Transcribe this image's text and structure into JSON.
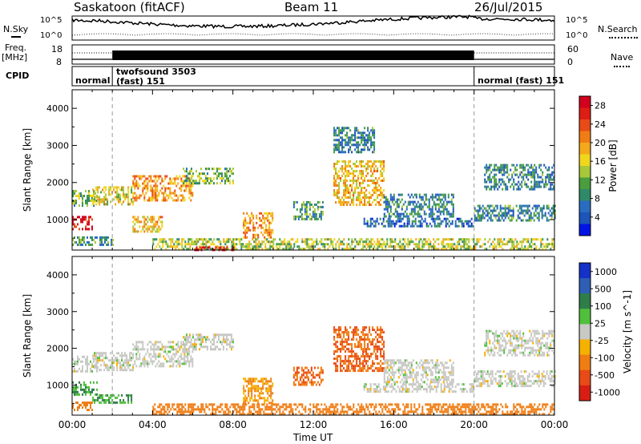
{
  "header": {
    "station": "Saskatoon (fitACF)",
    "beam": "Beam 11",
    "date": "26/Jul/2015"
  },
  "strips": {
    "nsky_label": "N.Sky",
    "nsky_scale_top": "10^5",
    "nsky_scale_bottom": "10^0",
    "nsearch_label": "N.Search",
    "nsearch_scale_top": "10^5",
    "nsearch_scale_bottom": "10^0",
    "freq_label_1": "Freq.",
    "freq_label_2": "[MHz]",
    "freq_scale_top": "18",
    "freq_scale_bottom": "8",
    "nave_label": "Nave",
    "nave_scale_top": "60",
    "nave_scale_bottom": "0",
    "cpid_label": "CPID",
    "cpid_segments": [
      {
        "name": "normal",
        "start_h": 0,
        "end_h": 2
      },
      {
        "name_line1": "twofsound 3503",
        "name_line2": "(fast) 151",
        "start_h": 2,
        "end_h": 20
      },
      {
        "name": "normal (fast) 151",
        "start_h": 20,
        "end_h": 24
      }
    ]
  },
  "axes": {
    "ylabel": "Slant Range [km]",
    "xlabel": "Time UT",
    "xticks": [
      "00:00",
      "04:00",
      "08:00",
      "12:00",
      "16:00",
      "20:00",
      "00:00"
    ],
    "yticks": [
      "1000",
      "2000",
      "3000",
      "4000"
    ]
  },
  "power_colorbar": {
    "label": "Power [dB]",
    "ticks": [
      "4",
      "8",
      "12",
      "16",
      "20",
      "24",
      "28"
    ],
    "colors": [
      "#0014e6",
      "#1d54b8",
      "#2a6cc0",
      "#2f8a6a",
      "#4a9e3e",
      "#a8c83a",
      "#f0d61c",
      "#f4a91a",
      "#f07d14",
      "#e84b16",
      "#dd1e14",
      "#d2001e"
    ]
  },
  "velocity_colorbar": {
    "label": "Velocity [m s^-1]",
    "ticks": [
      "1000",
      "500",
      "100",
      "25",
      "-25",
      "-100",
      "-500",
      "-1000"
    ],
    "colors": [
      "#1432c8",
      "#2e5fb4",
      "#2f7d4a",
      "#50c03c",
      "#c8c8c4",
      "#f5b000",
      "#f07d14",
      "#e84b16",
      "#d81e14"
    ]
  },
  "chart_data": [
    {
      "type": "heatmap",
      "title": "Power",
      "xlabel": "Time UT",
      "ylabel": "Slant Range [km]",
      "xlim_hours": [
        0,
        24
      ],
      "ylim_km": [
        180,
        4500
      ],
      "colorbar_label": "Power [dB]",
      "colorbar_range": [
        0,
        30
      ],
      "bands": [
        {
          "t0": 0.0,
          "t1": 1.0,
          "r0": 750,
          "r1": 1100,
          "value": 28
        },
        {
          "t0": 0.0,
          "t1": 1.2,
          "r0": 1350,
          "r1": 1800,
          "value": 12
        },
        {
          "t0": 1.0,
          "t1": 3.0,
          "r0": 1400,
          "r1": 1900,
          "value": 16
        },
        {
          "t0": 3.0,
          "t1": 6.0,
          "r0": 1500,
          "r1": 2200,
          "value": 20
        },
        {
          "t0": 5.5,
          "t1": 8.0,
          "r0": 2000,
          "r1": 2400,
          "value": 12
        },
        {
          "t0": 0.0,
          "t1": 2.0,
          "r0": 300,
          "r1": 550,
          "value": 10
        },
        {
          "t0": 3.0,
          "t1": 4.5,
          "r0": 700,
          "r1": 1100,
          "value": 18
        },
        {
          "t0": 8.5,
          "t1": 10.0,
          "r0": 500,
          "r1": 1200,
          "value": 20
        },
        {
          "t0": 4.0,
          "t1": 24.0,
          "r0": 200,
          "r1": 500,
          "value": 14
        },
        {
          "t0": 6.0,
          "t1": 8.0,
          "r0": 200,
          "r1": 280,
          "value": 28
        },
        {
          "t0": 13.0,
          "t1": 15.5,
          "r0": 1400,
          "r1": 2600,
          "value": 18
        },
        {
          "t0": 15.5,
          "t1": 19.0,
          "r0": 1100,
          "r1": 1700,
          "value": 8
        },
        {
          "t0": 14.5,
          "t1": 20.0,
          "r0": 800,
          "r1": 1050,
          "value": 6
        },
        {
          "t0": 20.0,
          "t1": 24.0,
          "r0": 1000,
          "r1": 1400,
          "value": 8
        },
        {
          "t0": 20.5,
          "t1": 24.0,
          "r0": 1800,
          "r1": 2500,
          "value": 8
        },
        {
          "t0": 13.0,
          "t1": 15.0,
          "r0": 2800,
          "r1": 3500,
          "value": 8
        },
        {
          "t0": 11.0,
          "t1": 12.5,
          "r0": 1000,
          "r1": 1500,
          "value": 10
        }
      ]
    },
    {
      "type": "heatmap",
      "title": "Velocity",
      "xlabel": "Time UT",
      "ylabel": "Slant Range [km]",
      "xlim_hours": [
        0,
        24
      ],
      "ylim_km": [
        180,
        4500
      ],
      "colorbar_label": "Velocity [m s^-1]",
      "colorbar_range": [
        -1000,
        1000
      ],
      "bands": [
        {
          "t0": 0.0,
          "t1": 1.2,
          "r0": 750,
          "r1": 1100,
          "value": 100
        },
        {
          "t0": 0.0,
          "t1": 1.2,
          "r0": 1350,
          "r1": 1800,
          "value": 0
        },
        {
          "t0": 1.0,
          "t1": 3.0,
          "r0": 500,
          "r1": 750,
          "value": 100
        },
        {
          "t0": 1.0,
          "t1": 3.0,
          "r0": 1400,
          "r1": 1900,
          "value": 0
        },
        {
          "t0": 3.0,
          "t1": 6.0,
          "r0": 1500,
          "r1": 2200,
          "value": 0
        },
        {
          "t0": 5.5,
          "t1": 8.0,
          "r0": 2000,
          "r1": 2400,
          "value": 0
        },
        {
          "t0": 0.0,
          "t1": 1.0,
          "r0": 300,
          "r1": 550,
          "value": -300
        },
        {
          "t0": 8.5,
          "t1": 10.0,
          "r0": 500,
          "r1": 1200,
          "value": -100
        },
        {
          "t0": 4.0,
          "t1": 24.0,
          "r0": 200,
          "r1": 500,
          "value": -150
        },
        {
          "t0": 13.0,
          "t1": 15.5,
          "r0": 1400,
          "r1": 2600,
          "value": -500
        },
        {
          "t0": 15.5,
          "t1": 19.0,
          "r0": 1100,
          "r1": 1700,
          "value": 0
        },
        {
          "t0": 14.5,
          "t1": 20.0,
          "r0": 800,
          "r1": 1050,
          "value": 0
        },
        {
          "t0": 20.0,
          "t1": 24.0,
          "r0": 1000,
          "r1": 1400,
          "value": 0
        },
        {
          "t0": 20.5,
          "t1": 24.0,
          "r0": 1800,
          "r1": 2500,
          "value": 0
        },
        {
          "t0": 11.0,
          "t1": 12.5,
          "r0": 1000,
          "r1": 1500,
          "value": -500
        }
      ]
    }
  ]
}
